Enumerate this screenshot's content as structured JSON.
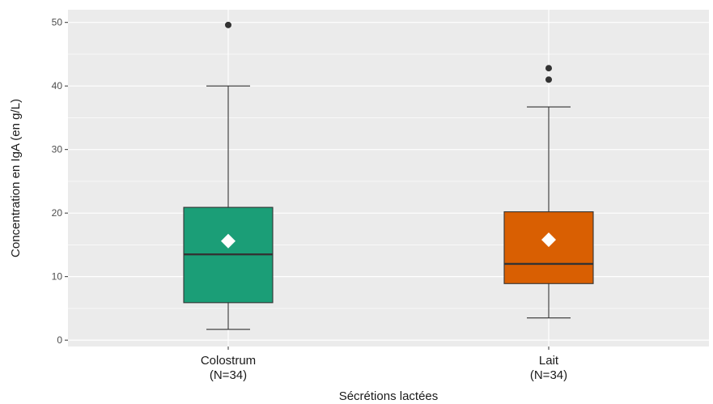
{
  "chart_data": {
    "type": "boxplot",
    "xlabel": "Sécrétions lactées",
    "ylabel": "Concentration en IgA (en g/L)",
    "ylim": [
      -1,
      52
    ],
    "yticks": [
      0,
      10,
      20,
      30,
      40,
      50
    ],
    "grid": true,
    "categories": [
      {
        "name": "Colostrum",
        "n_label": "(N=34)",
        "color": "#1b9e77",
        "whisker_low": 1.7,
        "q1": 5.9,
        "median": 13.5,
        "q3": 20.9,
        "whisker_high": 40,
        "mean": 15.6,
        "outliers": [
          49.6
        ]
      },
      {
        "name": "Lait",
        "n_label": "(N=34)",
        "color": "#d95f02",
        "whisker_low": 3.5,
        "q1": 8.9,
        "median": 12,
        "q3": 20.2,
        "whisker_high": 36.7,
        "mean": 15.8,
        "outliers": [
          42.8,
          41
        ]
      }
    ]
  }
}
